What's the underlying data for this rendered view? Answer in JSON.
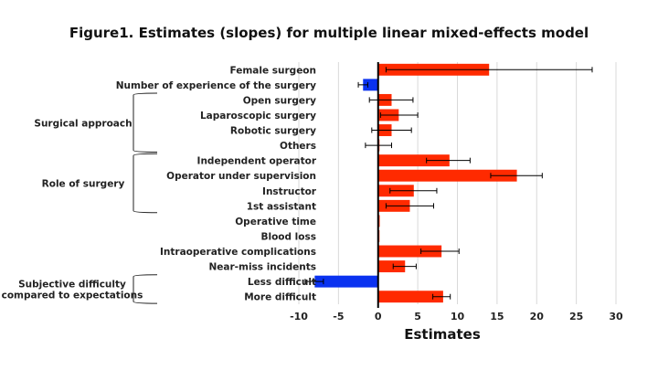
{
  "chart_data": {
    "type": "bar",
    "orientation": "horizontal",
    "title": "Figure1. Estimates (slopes) for multiple linear mixed-effects model",
    "xlabel": "Estimates",
    "ylabel": "",
    "xlim": [
      -10,
      30
    ],
    "xticks": [
      "-10",
      "-5",
      "0",
      "5",
      "10",
      "15",
      "20",
      "25",
      "30"
    ],
    "grid": true,
    "colors": {
      "positive": "#ff2a00",
      "negative": "#0a32f0"
    },
    "categories": [
      "Female surgeon",
      "Number of experience of the surgery",
      "Open surgery",
      "Laparoscopic surgery",
      "Robotic surgery",
      "Others",
      "Independent operator",
      "Operator under supervision",
      "Instructor",
      "1st assistant",
      "Operative time",
      "Blood loss",
      "Intraoperative complications",
      "Near-miss incidents",
      "Less difficult",
      "More difficult"
    ],
    "values": [
      14.0,
      -1.9,
      1.7,
      2.6,
      1.7,
      0,
      9.0,
      17.5,
      4.5,
      4.0,
      0.2,
      0.1,
      8.0,
      3.4,
      -8.0,
      8.2
    ],
    "ci_low": [
      1.0,
      -2.5,
      -1.1,
      0.3,
      -0.8,
      -1.6,
      6.1,
      14.2,
      1.5,
      1.0,
      null,
      null,
      5.4,
      1.9,
      -9.2,
      6.9
    ],
    "ci_high": [
      27.0,
      -1.3,
      4.4,
      5.0,
      4.2,
      1.7,
      11.6,
      20.7,
      7.4,
      7.0,
      null,
      null,
      10.2,
      4.8,
      -6.9,
      9.1
    ],
    "groups": [
      {
        "label": [
          "Surgical approach"
        ],
        "from": 2,
        "to": 5
      },
      {
        "label": [
          "Role of surgery"
        ],
        "from": 6,
        "to": 9
      },
      {
        "label": [
          "Subjective difficulty",
          "compared to expectations"
        ],
        "from": 14,
        "to": 15
      }
    ]
  }
}
